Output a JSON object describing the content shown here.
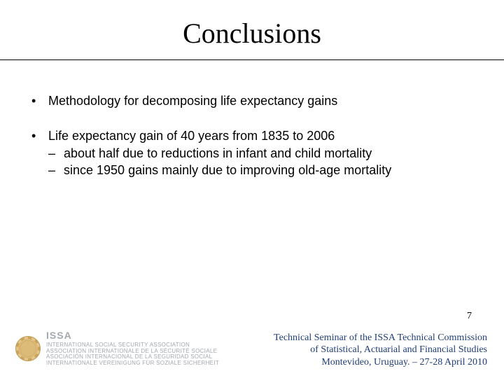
{
  "title": "Conclusions",
  "bullets": [
    {
      "text": "Methodology for decomposing life expectancy gains",
      "sub": []
    },
    {
      "text": "Life expectancy gain of 40 years from 1835 to 2006",
      "sub": [
        "about half due to reductions in infant and child mortality",
        "since 1950 gains mainly due to improving old-age mortality"
      ]
    }
  ],
  "page_number": "7",
  "footer": {
    "line1": "Technical Seminar of the ISSA Technical Commission",
    "line2": "of Statistical, Actuarial and Financial Studies",
    "line3": "Montevideo, Uruguay. – 27-28 April 2010"
  },
  "logo": {
    "acronym": "ISSA",
    "line1": "INTERNATIONAL SOCIAL SECURITY ASSOCIATION",
    "line2": "ASSOCIATION INTERNATIONALE DE LA SÉCURITÉ SOCIALE",
    "line3": "ASOCIACIÓN INTERNACIONAL DE LA SEGURIDAD SOCIAL",
    "line4": "INTERNATIONALE VEREINIGUNG FÜR SOZIALE SICHERHEIT"
  },
  "colors": {
    "text": "#000000",
    "footer_text": "#1f3e78",
    "background": "#ffffff"
  }
}
